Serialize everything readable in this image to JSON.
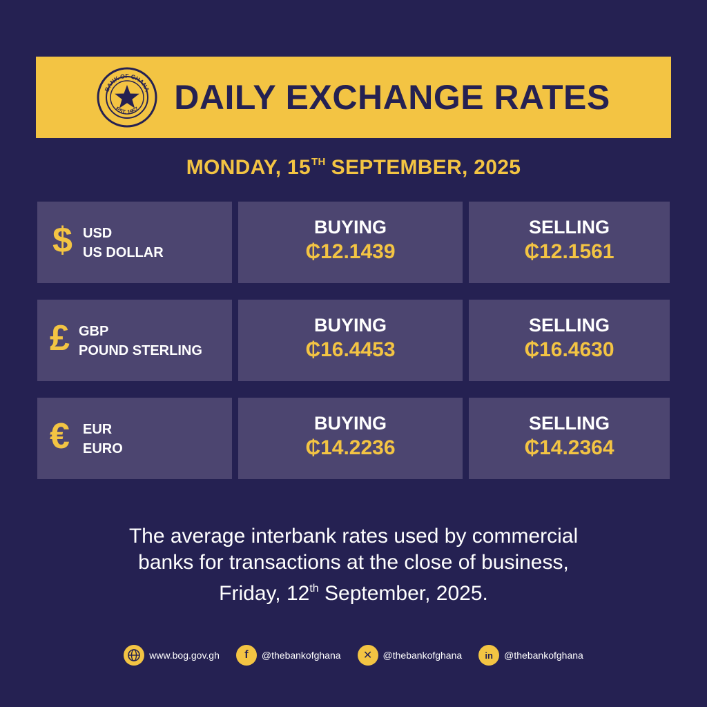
{
  "header": {
    "seal_text_top": "BANK OF GHANA",
    "seal_text_bottom": "EST. 1957",
    "title": "DAILY EXCHANGE RATES"
  },
  "date": {
    "prefix": "MONDAY, 15",
    "suffix": "TH",
    "rest": "SEPTEMBER, 2025"
  },
  "rates": [
    {
      "symbol": "$",
      "code": "USD",
      "name": "US DOLLAR",
      "buying_label": "BUYING",
      "buying": "₵12.1439",
      "selling_label": "SELLING",
      "selling": "₵12.1561"
    },
    {
      "symbol": "£",
      "code": "GBP",
      "name": "POUND STERLING",
      "buying_label": "BUYING",
      "buying": "₵16.4453",
      "selling_label": "SELLING",
      "selling": "₵16.4630"
    },
    {
      "symbol": "€",
      "code": "EUR",
      "name": "EURO",
      "buying_label": "BUYING",
      "buying": "₵14.2236",
      "selling_label": "SELLING",
      "selling": "₵14.2364"
    }
  ],
  "note": {
    "line1": "The average interbank rates used by commercial",
    "line2": "banks for transactions at the close of business,",
    "line3_prefix": "Friday, 12",
    "line3_suffix": "th",
    "line3_rest": " September, 2025."
  },
  "footer": {
    "website": "www.bog.gov.gh",
    "facebook": "@thebankofghana",
    "x": "@thebankofghana",
    "linkedin": "@thebankofghana",
    "icons": [
      "globe-icon",
      "facebook-icon",
      "x-icon",
      "linkedin-icon"
    ]
  },
  "colors": {
    "background": "#252152",
    "accent": "#f3c443",
    "cell": "#4c4570"
  }
}
